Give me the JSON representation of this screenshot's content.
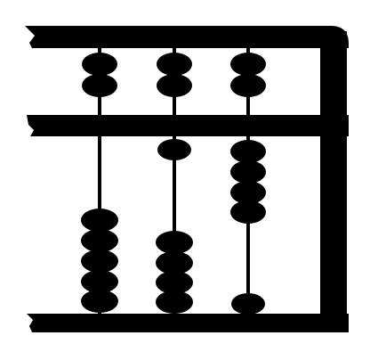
{
  "image": {
    "subject": "abacus",
    "style": "black silhouette on white background"
  },
  "colors": {
    "background": "#ffffff",
    "ink": "#000000"
  },
  "abacus": {
    "rods": [
      {
        "upper_beads": 2,
        "lower_beads": 5
      },
      {
        "upper_beads": 2,
        "lower_beads": 5
      },
      {
        "upper_beads": 2,
        "lower_beads": 5
      }
    ]
  }
}
